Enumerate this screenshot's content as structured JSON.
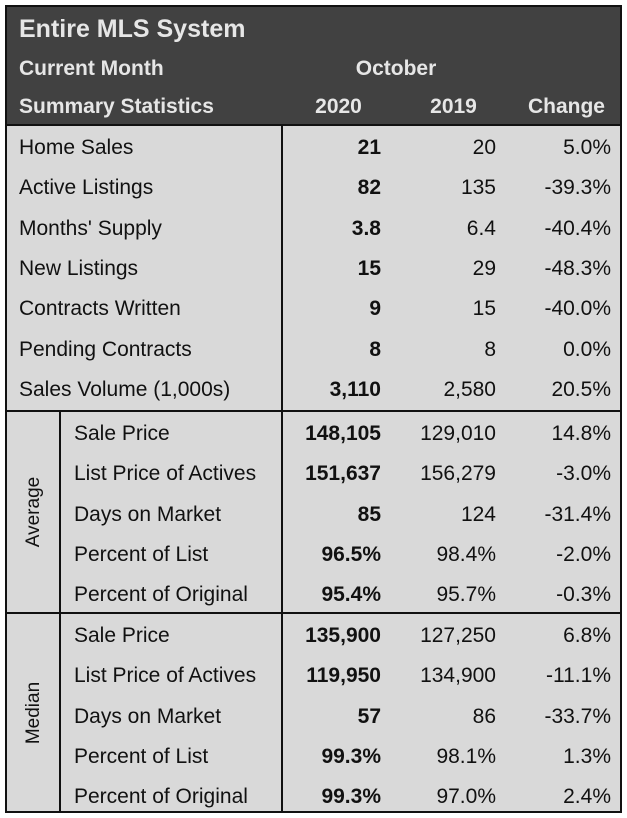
{
  "header": {
    "title": "Entire MLS System",
    "subtitle": "Current Month",
    "month": "October",
    "row_label": "Summary Statistics",
    "col_2020": "2020",
    "col_2019": "2019",
    "col_change": "Change"
  },
  "summary_rows": [
    {
      "label": "Home Sales",
      "v2020": "21",
      "v2019": "20",
      "change": "5.0%"
    },
    {
      "label": "Active Listings",
      "v2020": "82",
      "v2019": "135",
      "change": "-39.3%"
    },
    {
      "label": "Months' Supply",
      "v2020": "3.8",
      "v2019": "6.4",
      "change": "-40.4%"
    },
    {
      "label": "New Listings",
      "v2020": "15",
      "v2019": "29",
      "change": "-48.3%"
    },
    {
      "label": "Contracts Written",
      "v2020": "9",
      "v2019": "15",
      "change": "-40.0%"
    },
    {
      "label": "Pending Contracts",
      "v2020": "8",
      "v2019": "8",
      "change": "0.0%"
    },
    {
      "label": "Sales Volume (1,000s)",
      "v2020": "3,110",
      "v2019": "2,580",
      "change": "20.5%"
    }
  ],
  "average": {
    "label": "Average",
    "rows": [
      {
        "label": "Sale Price",
        "v2020": "148,105",
        "v2019": "129,010",
        "change": "14.8%"
      },
      {
        "label": "List Price of Actives",
        "v2020": "151,637",
        "v2019": "156,279",
        "change": "-3.0%"
      },
      {
        "label": "Days on Market",
        "v2020": "85",
        "v2019": "124",
        "change": "-31.4%"
      },
      {
        "label": "Percent of List",
        "v2020": "96.5%",
        "v2019": "98.4%",
        "change": "-2.0%"
      },
      {
        "label": "Percent of Original",
        "v2020": "95.4%",
        "v2019": "95.7%",
        "change": "-0.3%"
      }
    ]
  },
  "median": {
    "label": "Median",
    "rows": [
      {
        "label": "Sale Price",
        "v2020": "135,900",
        "v2019": "127,250",
        "change": "6.8%"
      },
      {
        "label": "List Price of Actives",
        "v2020": "119,950",
        "v2019": "134,900",
        "change": "-11.1%"
      },
      {
        "label": "Days on Market",
        "v2020": "57",
        "v2019": "86",
        "change": "-33.7%"
      },
      {
        "label": "Percent of List",
        "v2020": "99.3%",
        "v2019": "98.1%",
        "change": "1.3%"
      },
      {
        "label": "Percent of Original",
        "v2020": "99.3%",
        "v2019": "97.0%",
        "change": "2.4%"
      }
    ]
  }
}
